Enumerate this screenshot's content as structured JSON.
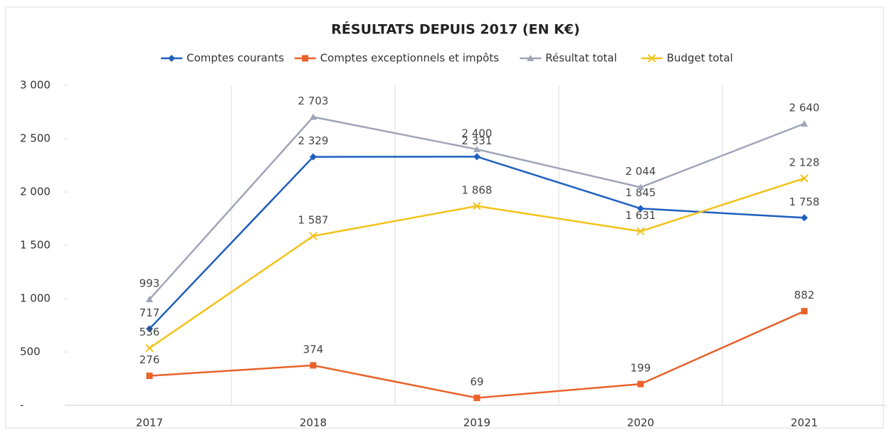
{
  "chart_data": {
    "type": "line",
    "title": "RÉSULTATS DEPUIS 2017 (EN K€)",
    "categories": [
      "2017",
      "2018",
      "2019",
      "2020",
      "2021"
    ],
    "series": [
      {
        "name": "Comptes courants",
        "color": "#1f5fbf",
        "marker": "diamond",
        "values": [
          717,
          2329,
          2331,
          1845,
          1758
        ],
        "value_labels": [
          "717",
          "2 329",
          "2 331",
          "1 845",
          "1 758"
        ]
      },
      {
        "name": "Comptes exceptionnels et impôts",
        "color": "#e8622a",
        "marker": "square",
        "values": [
          276,
          374,
          69,
          199,
          882
        ],
        "value_labels": [
          "276",
          "374",
          "69",
          "199",
          "882"
        ]
      },
      {
        "name": "Résultat total",
        "color": "#a0a4b8",
        "marker": "triangle",
        "values": [
          993,
          2703,
          2400,
          2044,
          2640
        ],
        "value_labels": [
          "993",
          "2 703",
          "2 400",
          "2 044",
          "2 640"
        ]
      },
      {
        "name": "Budget total",
        "color": "#f2c21a",
        "marker": "x",
        "values": [
          536,
          1587,
          1868,
          1631,
          2128
        ],
        "value_labels": [
          "536",
          "1 587",
          "1 868",
          "1 631",
          "2 128"
        ]
      }
    ],
    "ylim": [
      0,
      3000
    ],
    "yticks": [
      {
        "value": 0,
        "label": "-"
      },
      500,
      {
        "value": 1000,
        "label": "1 000"
      },
      {
        "value": 1500,
        "label": "1 500"
      },
      {
        "value": 2000,
        "label": "2 000"
      },
      {
        "value": 2500,
        "label": "2 500"
      },
      {
        "value": 3000,
        "label": "3 000"
      }
    ],
    "legend": "top"
  }
}
